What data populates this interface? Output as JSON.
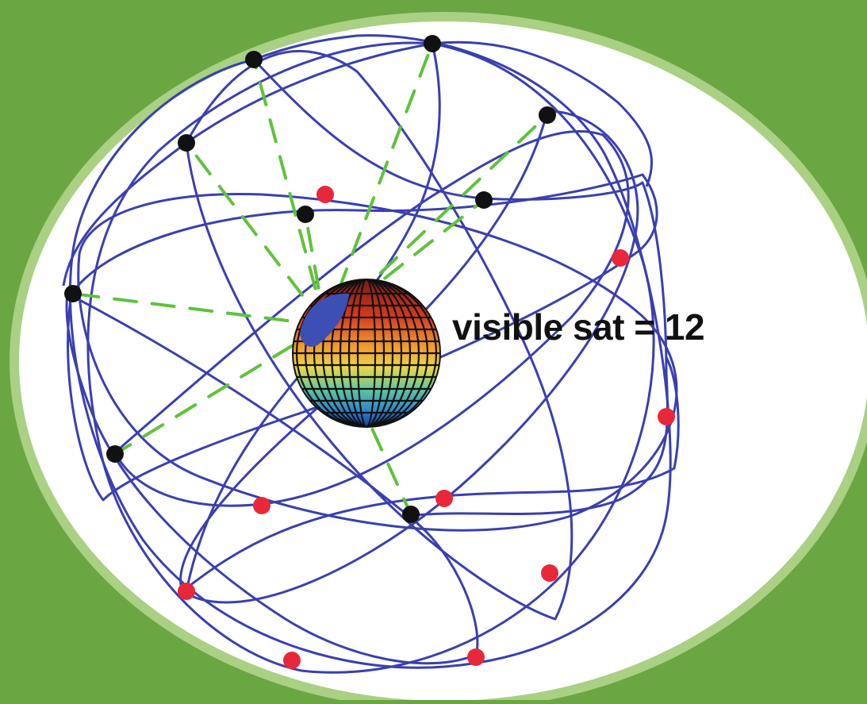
{
  "visible_label": "visible sat = 12",
  "colors": {
    "background": "#6aa641",
    "frame_rim": "#a9d083",
    "orbit": "#3a3fb0",
    "visible_link": "#5fc23c",
    "visible_satellite": "#111111",
    "hidden_satellite": "#e8283a"
  },
  "icons": {
    "visible_satellite": "black-dot-icon",
    "hidden_satellite": "red-dot-icon",
    "earth": "earth-globe-icon"
  },
  "counts": {
    "visible_satellites": 12
  }
}
